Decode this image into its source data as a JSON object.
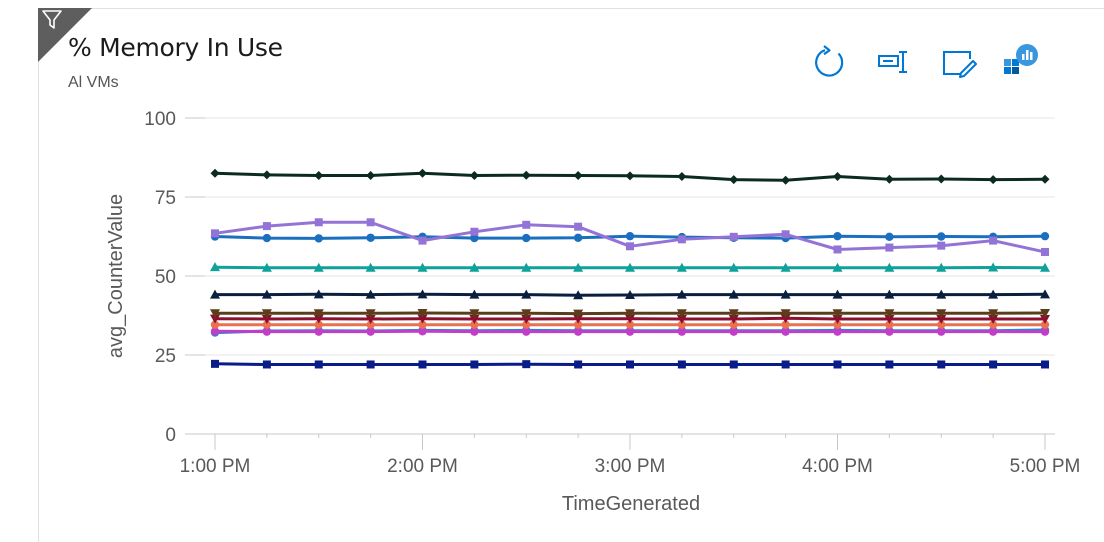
{
  "header": {
    "title": "% Memory In Use",
    "subtitle": "Al VMs"
  },
  "toolbar": {
    "icons": [
      "refresh-icon",
      "rename-icon",
      "edit-icon",
      "pin-to-dashboard-icon"
    ]
  },
  "colors": {
    "accent": "#0078d4",
    "filter_corner": "#5e5e5e"
  },
  "chart_data": {
    "type": "line",
    "xlabel": "TimeGenerated",
    "ylabel": "avg_CounterValue",
    "ylim": [
      0,
      100
    ],
    "yticks": [
      0,
      25,
      50,
      75,
      100
    ],
    "ytick_labels": [
      "0",
      "25",
      "50",
      "75",
      "100"
    ],
    "xticks": [
      0,
      60,
      120,
      180,
      240
    ],
    "xtick_labels": [
      "1:00 PM",
      "2:00 PM",
      "3:00 PM",
      "4:00 PM",
      "5:00 PM"
    ],
    "x": [
      "1:00 PM",
      "1:15 PM",
      "1:30 PM",
      "1:45 PM",
      "2:00 PM",
      "2:15 PM",
      "2:30 PM",
      "2:45 PM",
      "3:00 PM",
      "3:15 PM",
      "3:30 PM",
      "3:45 PM",
      "4:00 PM",
      "4:15 PM",
      "4:30 PM",
      "4:45 PM",
      "5:00 PM"
    ],
    "grid": "horizontal",
    "series": [
      {
        "color": "#0b2b22",
        "marker": "diamond",
        "values": [
          82.5,
          82,
          81.8,
          81.8,
          82.5,
          81.8,
          81.9,
          81.8,
          81.7,
          81.5,
          80.5,
          80.3,
          81.5,
          80.6,
          80.7,
          80.5,
          80.6
        ]
      },
      {
        "color": "#9374d6",
        "marker": "square",
        "values": [
          63.5,
          65.8,
          67,
          67,
          61.2,
          64,
          66.2,
          65.6,
          59.4,
          61.6,
          62.4,
          63.2,
          58.4,
          59,
          59.6,
          61.2,
          57.6
        ]
      },
      {
        "color": "#1a6fbe",
        "marker": "circle",
        "values": [
          62.5,
          62,
          61.9,
          62.1,
          62.4,
          62,
          62,
          62.1,
          62.6,
          62.3,
          62.1,
          62,
          62.6,
          62.4,
          62.5,
          62.4,
          62.6
        ]
      },
      {
        "color": "#0fa19a",
        "marker": "triangle",
        "values": [
          52.8,
          52.6,
          52.6,
          52.6,
          52.6,
          52.6,
          52.6,
          52.6,
          52.6,
          52.6,
          52.6,
          52.6,
          52.6,
          52.6,
          52.6,
          52.7,
          52.6
        ]
      },
      {
        "color": "#0a1f3e",
        "marker": "triangle",
        "values": [
          44.1,
          44.1,
          44.2,
          44.1,
          44.2,
          44.1,
          44.1,
          43.9,
          44,
          44.1,
          44.1,
          44.1,
          44.1,
          44.1,
          44.1,
          44.1,
          44.2
        ]
      },
      {
        "color": "#5a3e1a",
        "marker": "triangle-down",
        "values": [
          38.2,
          38.2,
          38.2,
          38.2,
          38.3,
          38.2,
          38.2,
          38.1,
          38.2,
          38.2,
          38.2,
          38.2,
          38.2,
          38.2,
          38.2,
          38.2,
          38.3
        ]
      },
      {
        "color": "#8b1030",
        "marker": "triangle-down",
        "values": [
          36.5,
          36.4,
          36.5,
          36.4,
          36.5,
          36.4,
          36.4,
          36.5,
          36.5,
          36.4,
          36.4,
          36.6,
          36.4,
          36.4,
          36.4,
          36.4,
          36.4
        ]
      },
      {
        "color": "#e8714f",
        "marker": "circle",
        "values": [
          34.6,
          34.6,
          34.6,
          34.6,
          34.6,
          34.6,
          34.6,
          34.6,
          34.6,
          34.6,
          34.6,
          34.6,
          34.6,
          34.6,
          34.6,
          34.6,
          34.6
        ]
      },
      {
        "color": "#c03fc8",
        "marker": "circle",
        "values": [
          32.5,
          32.4,
          32.4,
          32.4,
          32.5,
          32.4,
          32.4,
          32.4,
          32.4,
          32.4,
          32.4,
          32.4,
          32.4,
          32.4,
          32.4,
          32.4,
          32.4
        ]
      },
      {
        "color": "#1f88d6",
        "marker": "circle",
        "values": [
          32.1,
          32.6,
          32.7,
          32.6,
          32.8,
          32.7,
          32.8,
          32.7,
          32.7,
          32.7,
          32.7,
          32.7,
          32.8,
          32.7,
          32.7,
          32.7,
          32.9
        ]
      },
      {
        "color": "#0a1b8a",
        "marker": "square",
        "values": [
          22.2,
          22.0,
          22.0,
          22.0,
          22.0,
          22.0,
          22.1,
          22.0,
          22.0,
          22.0,
          22.0,
          22.0,
          22.0,
          22.0,
          22.0,
          22.0,
          22.0
        ]
      }
    ]
  }
}
